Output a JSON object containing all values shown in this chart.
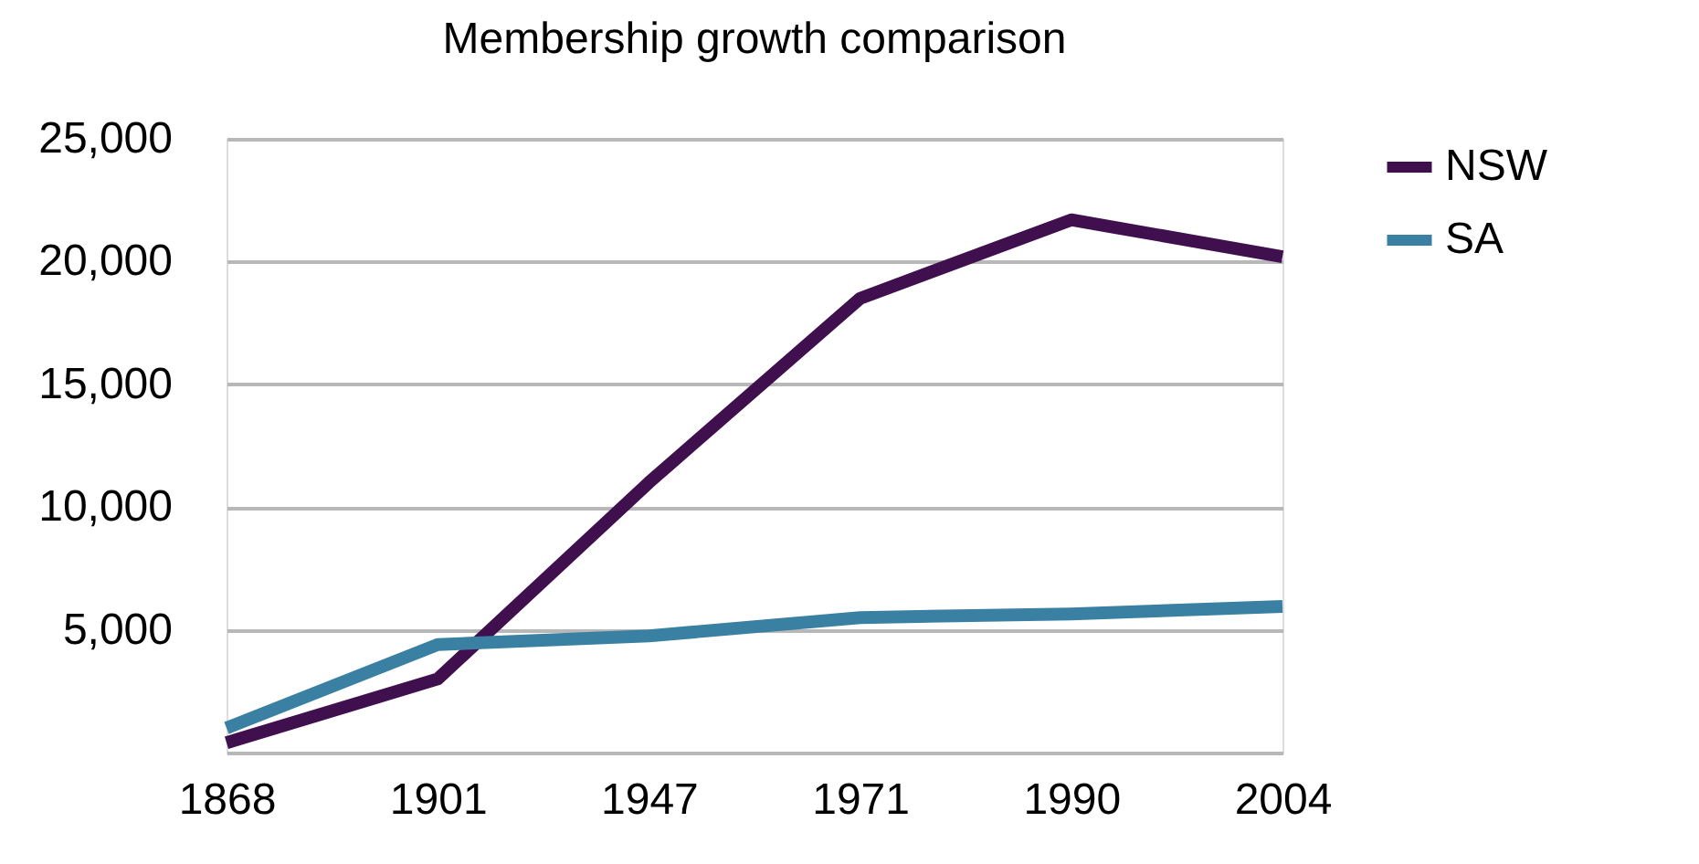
{
  "chart_data": {
    "type": "line",
    "title": "Membership growth comparison",
    "categories": [
      "1868",
      "1901",
      "1947",
      "1971",
      "1990",
      "2004"
    ],
    "series": [
      {
        "name": "NSW",
        "color": "#3f0f4e",
        "values": [
          400,
          3000,
          11000,
          18500,
          21700,
          20200
        ]
      },
      {
        "name": "SA",
        "color": "#3a80a2",
        "values": [
          1000,
          4400,
          4750,
          5500,
          5650,
          5950
        ]
      }
    ],
    "ylim": [
      0,
      25000
    ],
    "yticks": [
      {
        "value": 0,
        "label": null
      },
      {
        "value": 5000,
        "label": "5,000"
      },
      {
        "value": 10000,
        "label": "10,000"
      },
      {
        "value": 15000,
        "label": "15,000"
      },
      {
        "value": 20000,
        "label": "20,000"
      },
      {
        "value": 25000,
        "label": "25,000"
      }
    ],
    "grid": "y",
    "legend": "top right",
    "marker": "none",
    "line_style": "solid"
  }
}
